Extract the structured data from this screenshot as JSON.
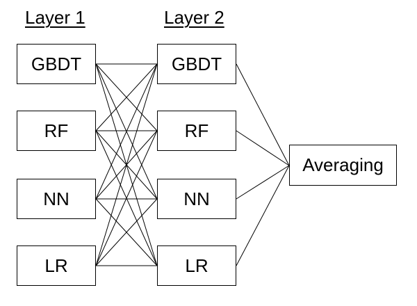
{
  "diagram": {
    "layer1": {
      "title": "Layer 1",
      "nodes": [
        {
          "id": "l1-gbdt",
          "label": "GBDT"
        },
        {
          "id": "l1-rf",
          "label": "RF"
        },
        {
          "id": "l1-nn",
          "label": "NN"
        },
        {
          "id": "l1-lr",
          "label": "LR"
        }
      ]
    },
    "layer2": {
      "title": "Layer 2",
      "nodes": [
        {
          "id": "l2-gbdt",
          "label": "GBDT"
        },
        {
          "id": "l2-rf",
          "label": "RF"
        },
        {
          "id": "l2-nn",
          "label": "NN"
        },
        {
          "id": "l2-lr",
          "label": "LR"
        }
      ]
    },
    "output": {
      "label": "Averaging"
    },
    "connections": {
      "layer1_to_layer2": "all-to-all",
      "layer2_to_output": "all"
    }
  }
}
